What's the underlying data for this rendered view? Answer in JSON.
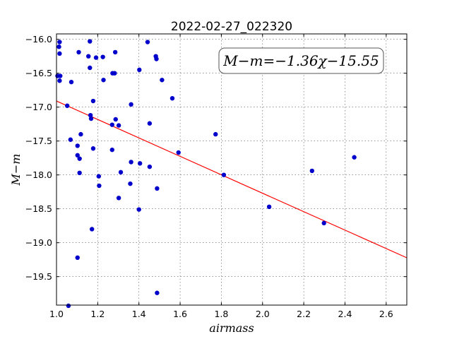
{
  "chart_data": {
    "type": "scatter",
    "title": "2022-02-27_022320",
    "xlabel": "airmass",
    "ylabel": "M−m",
    "annotation": "M−m=−1.36χ−15.55",
    "xlim": [
      1.0,
      2.7
    ],
    "ylim": [
      -19.92,
      -15.92
    ],
    "x_ticks": [
      1.0,
      1.2,
      1.4,
      1.6,
      1.8,
      2.0,
      2.2,
      2.4,
      2.6
    ],
    "x_tick_labels": [
      "1.0",
      "1.2",
      "1.4",
      "1.6",
      "1.8",
      "2.0",
      "2.2",
      "2.4",
      "2.6"
    ],
    "y_ticks": [
      -16.0,
      -16.5,
      -17.0,
      -17.5,
      -18.0,
      -18.5,
      -19.0,
      -19.5
    ],
    "y_tick_labels": [
      "−16.0",
      "−16.5",
      "−17.0",
      "−17.5",
      "−18.0",
      "−18.5",
      "−19.0",
      "−19.5"
    ],
    "grid": true,
    "fit_line": {
      "slope": -1.36,
      "intercept": -15.55,
      "color": "#ff0000"
    },
    "point_color": "#0000cc",
    "points": [
      [
        1.015,
        -16.04
      ],
      [
        1.012,
        -16.11
      ],
      [
        1.015,
        -16.21
      ],
      [
        1.005,
        -16.54
      ],
      [
        1.018,
        -16.54
      ],
      [
        1.015,
        -16.61
      ],
      [
        1.072,
        -16.63
      ],
      [
        1.052,
        -16.98
      ],
      [
        1.108,
        -16.19
      ],
      [
        1.162,
        -16.03
      ],
      [
        1.155,
        -16.25
      ],
      [
        1.192,
        -16.27
      ],
      [
        1.225,
        -16.26
      ],
      [
        1.285,
        -16.19
      ],
      [
        1.162,
        -16.42
      ],
      [
        1.272,
        -16.5
      ],
      [
        1.282,
        -16.5
      ],
      [
        1.228,
        -16.6
      ],
      [
        1.402,
        -16.45
      ],
      [
        1.442,
        -16.04
      ],
      [
        1.482,
        -16.25
      ],
      [
        1.485,
        -16.29
      ],
      [
        1.512,
        -16.6
      ],
      [
        1.178,
        -16.91
      ],
      [
        1.165,
        -17.12
      ],
      [
        1.168,
        -17.17
      ],
      [
        1.287,
        -17.18
      ],
      [
        1.302,
        -17.27
      ],
      [
        1.27,
        -17.26
      ],
      [
        1.362,
        -16.96
      ],
      [
        1.562,
        -16.87
      ],
      [
        1.452,
        -17.24
      ],
      [
        1.118,
        -17.4
      ],
      [
        1.068,
        -17.48
      ],
      [
        1.102,
        -17.57
      ],
      [
        1.178,
        -17.61
      ],
      [
        1.27,
        -17.63
      ],
      [
        1.102,
        -17.71
      ],
      [
        1.112,
        -17.76
      ],
      [
        1.362,
        -17.81
      ],
      [
        1.405,
        -17.83
      ],
      [
        1.452,
        -17.88
      ],
      [
        1.112,
        -17.97
      ],
      [
        1.205,
        -18.02
      ],
      [
        1.312,
        -17.96
      ],
      [
        1.207,
        -18.16
      ],
      [
        1.358,
        -18.13
      ],
      [
        1.488,
        -18.2
      ],
      [
        1.302,
        -18.34
      ],
      [
        1.4,
        -18.51
      ],
      [
        1.172,
        -18.8
      ],
      [
        1.102,
        -19.22
      ],
      [
        1.488,
        -19.74
      ],
      [
        1.058,
        -19.93
      ],
      [
        1.592,
        -17.67
      ],
      [
        1.772,
        -17.4
      ],
      [
        1.812,
        -18.0
      ],
      [
        2.032,
        -18.47
      ],
      [
        2.24,
        -17.94
      ],
      [
        2.298,
        -18.71
      ],
      [
        2.445,
        -17.74
      ]
    ]
  }
}
